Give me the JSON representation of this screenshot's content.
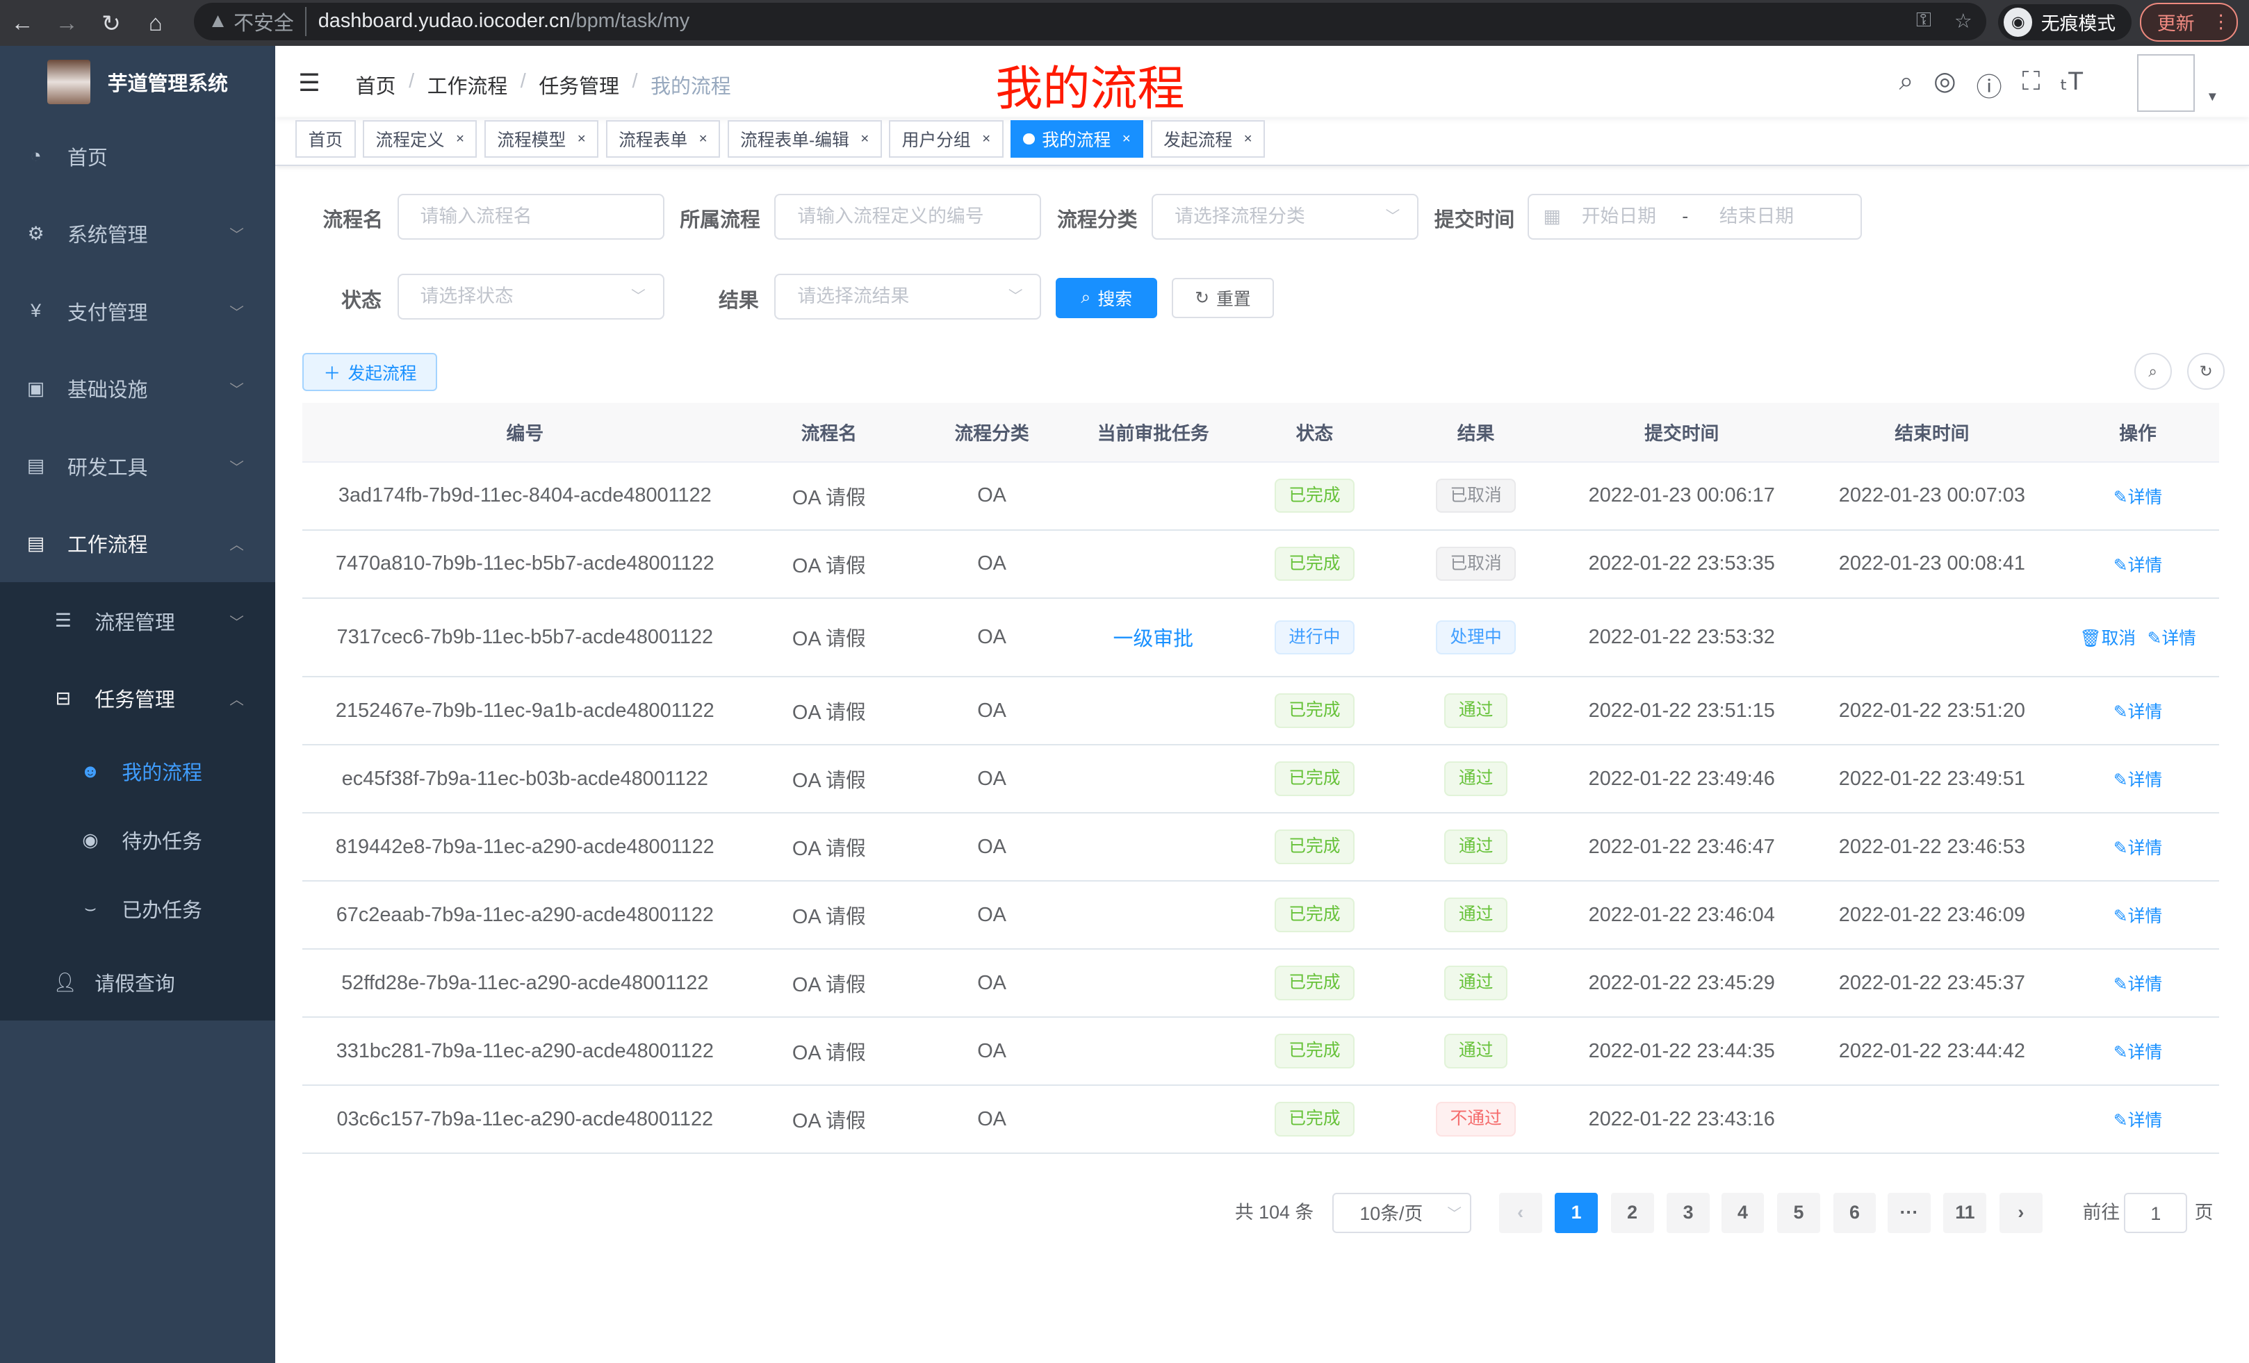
{
  "browser": {
    "insecure_label": "不安全",
    "url_host": "dashboard.yudao.iocoder.cn",
    "url_path": "/bpm/task/my",
    "incognito_label": "无痕模式",
    "update_label": "更新"
  },
  "sidebar": {
    "title": "芋道管理系统",
    "items": [
      {
        "label": "首页",
        "icon": "dashboard-icon"
      },
      {
        "label": "系统管理",
        "icon": "gear-icon"
      },
      {
        "label": "支付管理",
        "icon": "yen-icon"
      },
      {
        "label": "基础设施",
        "icon": "monitor-icon"
      },
      {
        "label": "研发工具",
        "icon": "toolbox-icon"
      },
      {
        "label": "工作流程",
        "icon": "toolbox-icon"
      },
      {
        "label": "流程管理",
        "icon": "list-icon"
      },
      {
        "label": "任务管理",
        "icon": "task-icon"
      },
      {
        "label": "我的流程",
        "icon": "people-icon"
      },
      {
        "label": "待办任务",
        "icon": "eye-icon"
      },
      {
        "label": "已办任务",
        "icon": "eye-closed-icon"
      },
      {
        "label": "请假查询",
        "icon": "user-icon"
      }
    ]
  },
  "breadcrumb": [
    "首页",
    "工作流程",
    "任务管理",
    "我的流程"
  ],
  "page_heading": "我的流程",
  "tags": [
    "首页",
    "流程定义",
    "流程模型",
    "流程表单",
    "流程表单-编辑",
    "用户分组",
    "我的流程",
    "发起流程"
  ],
  "accent": "#1890ff",
  "filters": {
    "name_label": "流程名",
    "name_placeholder": "请输入流程名",
    "process_label": "所属流程",
    "process_placeholder": "请输入流程定义的编号",
    "category_label": "流程分类",
    "category_placeholder": "请选择流程分类",
    "time_label": "提交时间",
    "start_placeholder": "开始日期",
    "range_sep": "-",
    "end_placeholder": "结束日期",
    "status_label": "状态",
    "status_placeholder": "请选择状态",
    "result_label": "结果",
    "result_placeholder": "请选择流结果",
    "search": "搜索",
    "reset": "重置"
  },
  "start_button": "发起流程",
  "table": {
    "headers": [
      "编号",
      "流程名",
      "流程分类",
      "当前审批任务",
      "状态",
      "结果",
      "提交时间",
      "结束时间",
      "操作"
    ],
    "rows": [
      {
        "id": "3ad174fb-7b9d-11ec-8404-acde48001122",
        "name": "OA 请假",
        "category": "OA",
        "task": "",
        "status": "已完成",
        "result": "已取消",
        "submit": "2022-01-23 00:06:17",
        "end": "2022-01-23 00:07:03"
      },
      {
        "id": "7470a810-7b9b-11ec-b5b7-acde48001122",
        "name": "OA 请假",
        "category": "OA",
        "task": "",
        "status": "已完成",
        "result": "已取消",
        "submit": "2022-01-22 23:53:35",
        "end": "2022-01-23 00:08:41"
      },
      {
        "id": "7317cec6-7b9b-11ec-b5b7-acde48001122",
        "name": "OA 请假",
        "category": "OA",
        "task": "一级审批",
        "status": "进行中",
        "result": "处理中",
        "submit": "2022-01-22 23:53:32",
        "end": "",
        "cancel": "取消"
      },
      {
        "id": "2152467e-7b9b-11ec-9a1b-acde48001122",
        "name": "OA 请假",
        "category": "OA",
        "task": "",
        "status": "已完成",
        "result": "通过",
        "submit": "2022-01-22 23:51:15",
        "end": "2022-01-22 23:51:20"
      },
      {
        "id": "ec45f38f-7b9a-11ec-b03b-acde48001122",
        "name": "OA 请假",
        "category": "OA",
        "task": "",
        "status": "已完成",
        "result": "通过",
        "submit": "2022-01-22 23:49:46",
        "end": "2022-01-22 23:49:51"
      },
      {
        "id": "819442e8-7b9a-11ec-a290-acde48001122",
        "name": "OA 请假",
        "category": "OA",
        "task": "",
        "status": "已完成",
        "result": "通过",
        "submit": "2022-01-22 23:46:47",
        "end": "2022-01-22 23:46:53"
      },
      {
        "id": "67c2eaab-7b9a-11ec-a290-acde48001122",
        "name": "OA 请假",
        "category": "OA",
        "task": "",
        "status": "已完成",
        "result": "通过",
        "submit": "2022-01-22 23:46:04",
        "end": "2022-01-22 23:46:09"
      },
      {
        "id": "52ffd28e-7b9a-11ec-a290-acde48001122",
        "name": "OA 请假",
        "category": "OA",
        "task": "",
        "status": "已完成",
        "result": "通过",
        "submit": "2022-01-22 23:45:29",
        "end": "2022-01-22 23:45:37"
      },
      {
        "id": "331bc281-7b9a-11ec-a290-acde48001122",
        "name": "OA 请假",
        "category": "OA",
        "task": "",
        "status": "已完成",
        "result": "通过",
        "submit": "2022-01-22 23:44:35",
        "end": "2022-01-22 23:44:42"
      },
      {
        "id": "03c6c157-7b9a-11ec-a290-acde48001122",
        "name": "OA 请假",
        "category": "OA",
        "task": "",
        "status": "已完成",
        "result": "不通过",
        "submit": "2022-01-22 23:43:16",
        "end": ""
      }
    ],
    "detail_label": "详情"
  },
  "pagination": {
    "total": "共 104 条",
    "page_size": "10条/页",
    "pages": [
      "1",
      "2",
      "3",
      "4",
      "5",
      "6",
      "···",
      "11"
    ],
    "current": "1",
    "goto_label": "前往",
    "goto_value": "1",
    "page_suffix": "页"
  }
}
